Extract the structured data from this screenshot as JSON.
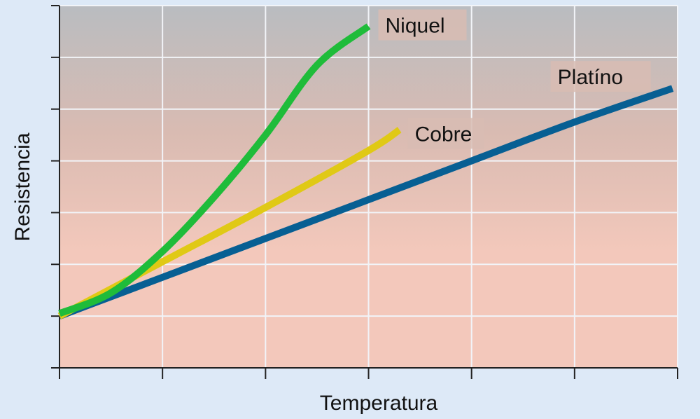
{
  "chart_data": {
    "type": "line",
    "title": "",
    "xlabel": "Temperatura",
    "ylabel": "Resistencia",
    "xlim": [
      0,
      6
    ],
    "ylim": [
      0,
      7
    ],
    "grid": true,
    "tick_labels": false,
    "background_gradient": [
      "#b9bcc0",
      "#d9bbb2",
      "#f3c8bb"
    ],
    "series": [
      {
        "name": "Niquel",
        "color": "#1fbc3a",
        "x": [
          0,
          0.5,
          1.0,
          1.5,
          2.0,
          2.5,
          3.0
        ],
        "y": [
          1.05,
          1.45,
          2.25,
          3.3,
          4.5,
          5.85,
          6.6
        ]
      },
      {
        "name": "Cobre",
        "color": "#e0c915",
        "x": [
          0,
          1.0,
          2.0,
          3.0,
          3.3
        ],
        "y": [
          1.0,
          2.05,
          3.1,
          4.2,
          4.6
        ]
      },
      {
        "name": "Platíno",
        "color": "#075f93",
        "x": [
          0,
          1.0,
          2.0,
          3.0,
          4.0,
          5.0,
          5.95
        ],
        "y": [
          1.0,
          1.75,
          2.5,
          3.25,
          4.0,
          4.75,
          5.4
        ]
      }
    ]
  }
}
